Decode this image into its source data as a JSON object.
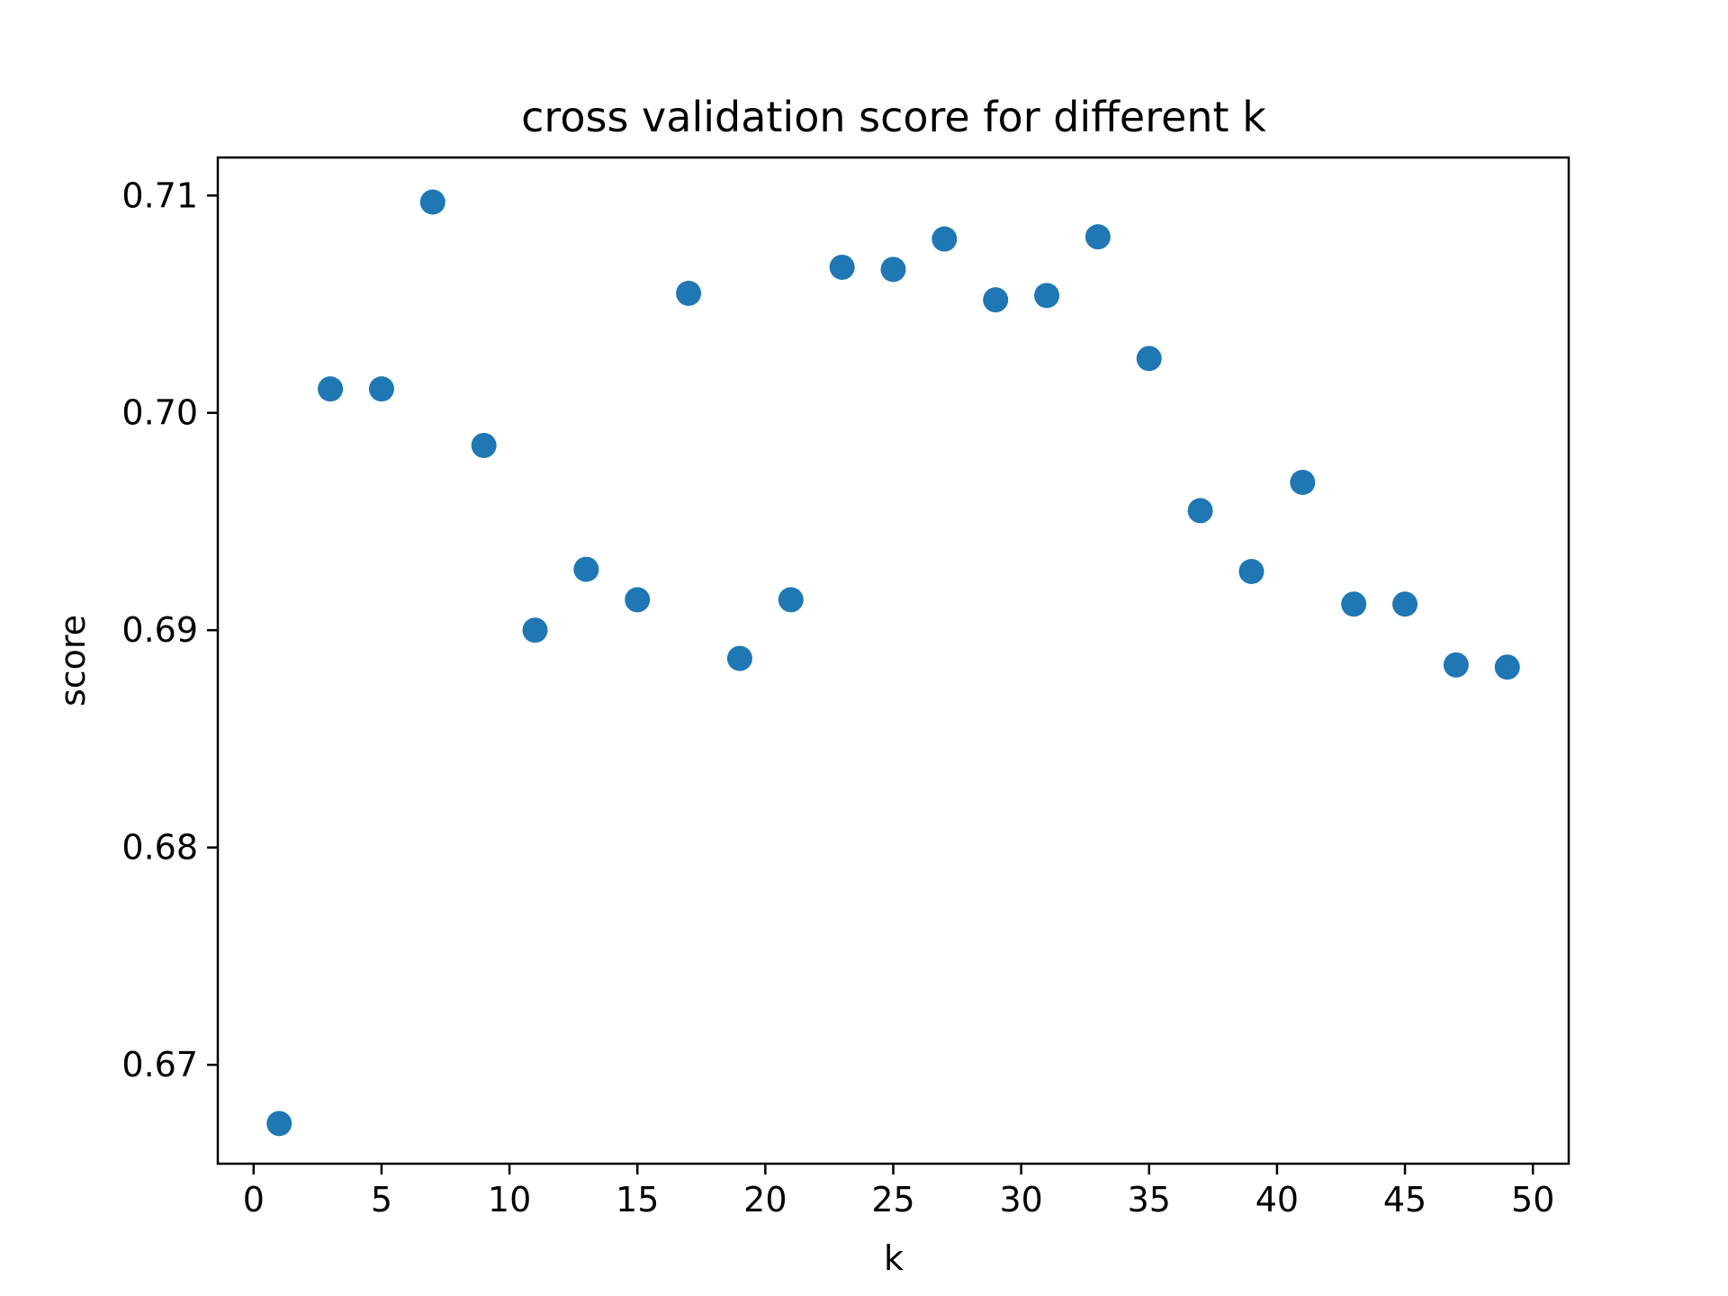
{
  "chart_data": {
    "type": "scatter",
    "title": "cross validation score for different k",
    "xlabel": "k",
    "ylabel": "score",
    "xlim": [
      -1.4,
      51.4
    ],
    "ylim": [
      0.66545,
      0.71175
    ],
    "xticks": [
      0,
      5,
      10,
      15,
      20,
      25,
      30,
      35,
      40,
      45,
      50
    ],
    "xtick_labels": [
      "0",
      "5",
      "10",
      "15",
      "20",
      "25",
      "30",
      "35",
      "40",
      "45",
      "50"
    ],
    "yticks": [
      0.67,
      0.68,
      0.69,
      0.7,
      0.71
    ],
    "ytick_labels": [
      "0.67",
      "0.68",
      "0.69",
      "0.70",
      "0.71"
    ],
    "grid": false,
    "marker_color": "#1f77b4",
    "series": [
      {
        "x": [
          1,
          3,
          5,
          7,
          9,
          11,
          13,
          15,
          17,
          19,
          21,
          23,
          25,
          27,
          29,
          31,
          33,
          35,
          37,
          39,
          41,
          43,
          45,
          47,
          49
        ],
        "y": [
          0.6673,
          0.7011,
          0.7011,
          0.7097,
          0.6985,
          0.69,
          0.6928,
          0.6914,
          0.7055,
          0.6887,
          0.6914,
          0.7067,
          0.7066,
          0.708,
          0.7052,
          0.7054,
          0.7081,
          0.7025,
          0.6955,
          0.6927,
          0.6968,
          0.6912,
          0.6912,
          0.6884,
          0.6883
        ]
      }
    ]
  }
}
